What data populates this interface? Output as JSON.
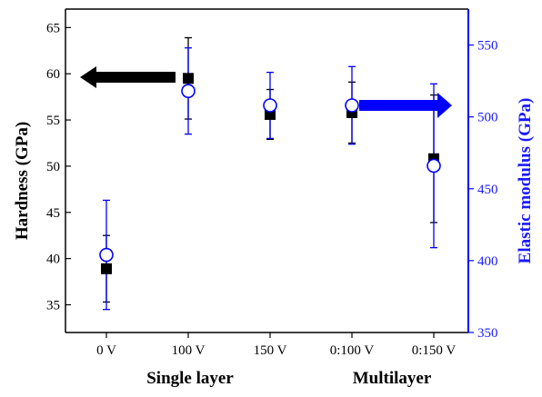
{
  "chart_data": {
    "type": "scatter",
    "categories": [
      "0 V",
      "100 V",
      "150 V",
      "0:100 V",
      "0:150 V"
    ],
    "group_labels": [
      {
        "text": "Single layer",
        "categories": [
          "0 V",
          "100 V",
          "150 V"
        ]
      },
      {
        "text": "Multilayer",
        "categories": [
          "0:100 V",
          "0:150 V"
        ]
      }
    ],
    "left_axis": {
      "label": "Hardness (GPa)",
      "ylim": [
        32,
        67
      ],
      "ticks": [
        35,
        40,
        45,
        50,
        55,
        60,
        65
      ],
      "color": "#000000"
    },
    "right_axis": {
      "label": "Elastic modulus (GPa)",
      "ylim": [
        350,
        575
      ],
      "ticks": [
        350,
        400,
        450,
        500,
        550
      ],
      "color": "#0000ff"
    },
    "series": [
      {
        "axis": "left",
        "marker": "filled-square",
        "color": "#000000",
        "values": [
          38.9,
          59.5,
          55.6,
          55.8,
          50.8
        ],
        "errors": [
          3.6,
          4.4,
          2.7,
          3.3,
          6.9
        ]
      },
      {
        "axis": "right",
        "marker": "open-circle",
        "color": "#0000ff",
        "values": [
          404,
          518,
          508,
          508,
          466
        ],
        "errors": [
          38,
          30,
          23,
          27,
          57
        ]
      }
    ],
    "annotations": [
      {
        "type": "arrow",
        "direction": "left",
        "color": "#000000",
        "meaning": "left axis"
      },
      {
        "type": "arrow",
        "direction": "right",
        "color": "#0000ff",
        "meaning": "right axis"
      }
    ],
    "grid": false
  }
}
